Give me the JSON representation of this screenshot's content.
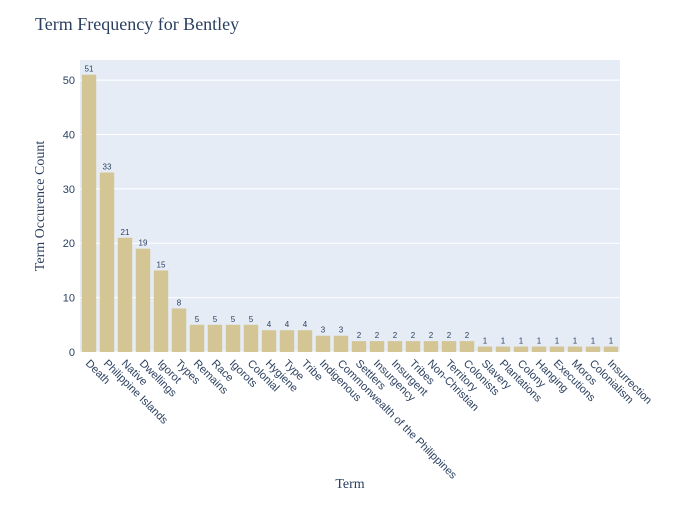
{
  "chart_data": {
    "type": "bar",
    "title": "Term Frequency for Bentley",
    "xlabel": "Term",
    "ylabel": "Term Occurence Count",
    "ylim": [
      0,
      53.7
    ],
    "yticks": [
      0,
      10,
      20,
      30,
      40,
      50
    ],
    "grid": true,
    "legend": "none",
    "colors": {
      "bar": "#d4c594",
      "plot_bg": "#e5ecf6",
      "grid": "#ffffff",
      "text": "#2a3f5f"
    },
    "categories": [
      "Death",
      "Philippine Islands",
      "Native",
      "Dwellings",
      "Igorot",
      "Types",
      "Remains",
      "Race",
      "Igorots",
      "Colonial",
      "Hygiene",
      "Type",
      "Tribe",
      "Indigenous",
      "Commonwealth of the Philippines",
      "Settlers",
      "Insurgency",
      "Insurgent",
      "Tribes",
      "Non-Christian",
      "Territory",
      "Colonists",
      "Slavery",
      "Plantations",
      "Colony",
      "Hanging",
      "Executions",
      "Moros",
      "Colonialism",
      "Insurrection"
    ],
    "values": [
      51,
      33,
      21,
      19,
      15,
      8,
      5,
      5,
      5,
      5,
      4,
      4,
      4,
      3,
      3,
      2,
      2,
      2,
      2,
      2,
      2,
      2,
      1,
      1,
      1,
      1,
      1,
      1,
      1,
      1
    ]
  }
}
